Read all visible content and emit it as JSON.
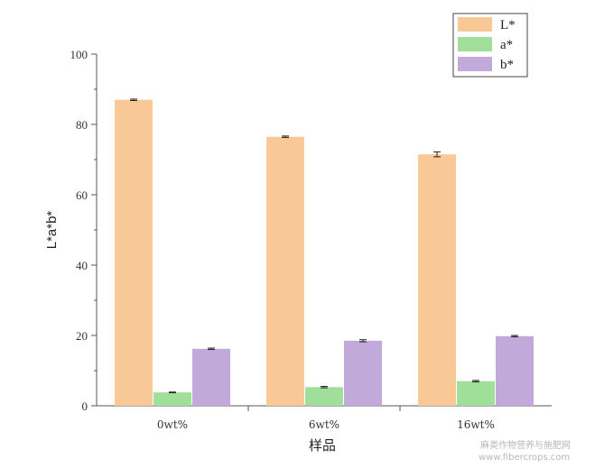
{
  "chart_data": {
    "type": "bar",
    "categories": [
      "0wt%",
      "6wt%",
      "16wt%"
    ],
    "series": [
      {
        "name": "L*",
        "color": "#f8c896",
        "values": [
          87.0,
          76.5,
          71.5
        ],
        "errors": [
          0.2,
          0.2,
          0.7
        ]
      },
      {
        "name": "a*",
        "color": "#9fdf9a",
        "values": [
          3.8,
          5.3,
          7.0
        ],
        "errors": [
          0.1,
          0.2,
          0.2
        ]
      },
      {
        "name": "b*",
        "color": "#c1aad9",
        "values": [
          16.2,
          18.5,
          19.8
        ],
        "errors": [
          0.2,
          0.3,
          0.2
        ]
      }
    ],
    "title": "",
    "xlabel": "样品",
    "ylabel": "L*a*b*",
    "ylim": [
      0,
      100
    ],
    "yticks": [
      0,
      20,
      40,
      60,
      80,
      100
    ],
    "grid": false,
    "legend_position": "top-right"
  },
  "watermark": {
    "line1": "麻类作物营养与施肥网",
    "line2": "www.fibercrops.com"
  }
}
